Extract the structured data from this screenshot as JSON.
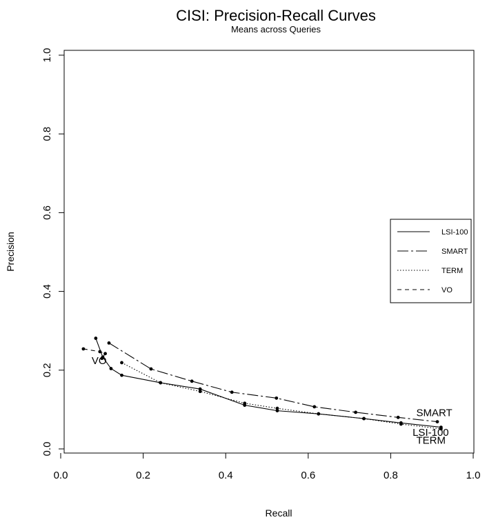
{
  "chart_data": {
    "type": "line",
    "title": "CISI: Precision-Recall Curves",
    "subtitle": "Means across Queries",
    "xlabel": "Recall",
    "ylabel": "Precision",
    "xlim": [
      0.0,
      1.0
    ],
    "ylim": [
      0.0,
      1.0
    ],
    "xticks": [
      "0.0",
      "0.2",
      "0.4",
      "0.6",
      "0.8",
      "1.0"
    ],
    "yticks": [
      "0.0",
      "0.2",
      "0.4",
      "0.6",
      "0.8",
      "1.0"
    ],
    "legend_position": "right",
    "grid": false,
    "series": [
      {
        "name": "LSI-100",
        "dash": "solid",
        "points": [
          [
            0.085,
            0.281
          ],
          [
            0.102,
            0.233
          ],
          [
            0.122,
            0.204
          ],
          [
            0.148,
            0.187
          ],
          [
            0.242,
            0.168
          ],
          [
            0.338,
            0.152
          ],
          [
            0.446,
            0.111
          ],
          [
            0.525,
            0.097
          ],
          [
            0.625,
            0.089
          ],
          [
            0.735,
            0.077
          ],
          [
            0.825,
            0.066
          ],
          [
            0.922,
            0.055
          ]
        ]
      },
      {
        "name": "SMART",
        "dash": "longdash",
        "points": [
          [
            0.117,
            0.269
          ],
          [
            0.219,
            0.203
          ],
          [
            0.318,
            0.172
          ],
          [
            0.415,
            0.144
          ],
          [
            0.523,
            0.129
          ],
          [
            0.615,
            0.107
          ],
          [
            0.715,
            0.093
          ],
          [
            0.818,
            0.08
          ],
          [
            0.913,
            0.069
          ]
        ]
      },
      {
        "name": "TERM",
        "dash": "dotted",
        "points": [
          [
            0.148,
            0.219
          ],
          [
            0.242,
            0.168
          ],
          [
            0.338,
            0.146
          ],
          [
            0.446,
            0.116
          ],
          [
            0.525,
            0.103
          ],
          [
            0.625,
            0.089
          ],
          [
            0.735,
            0.077
          ],
          [
            0.825,
            0.063
          ],
          [
            0.922,
            0.051
          ]
        ]
      },
      {
        "name": "VO",
        "dash": "dashed",
        "points": [
          [
            0.055,
            0.254
          ],
          [
            0.095,
            0.247
          ],
          [
            0.108,
            0.242
          ],
          [
            0.1,
            0.23
          ]
        ]
      }
    ],
    "annotations": [
      {
        "text": "VO",
        "x": 0.075,
        "y": 0.215
      },
      {
        "text": "SMART",
        "x": 0.862,
        "y": 0.083
      },
      {
        "text": "LSI-100",
        "x": 0.853,
        "y": 0.033
      },
      {
        "text": "TERM",
        "x": 0.862,
        "y": 0.013
      }
    ]
  }
}
